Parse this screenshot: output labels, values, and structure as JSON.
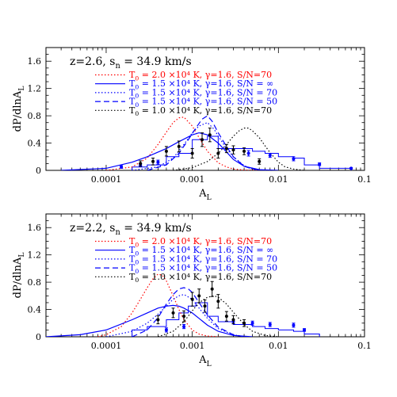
{
  "chart_data": [
    {
      "type": "line",
      "title": "z=2.6, s_n = 34.9 km/s",
      "title_main": "z=2.6, s",
      "title_sub": "n",
      "title_tail": " = 34.9 km/s",
      "xlabel": "A",
      "xlabel_sub": "L",
      "ylabel": "dP/dlnA",
      "ylabel_sub": "L",
      "xscale": "log",
      "xlim": [
        2e-05,
        0.1
      ],
      "ylim": [
        0,
        1.8
      ],
      "xticks": [
        0.0001,
        0.001,
        0.01,
        0.1
      ],
      "xtick_labels": [
        "0.0001",
        "0.001",
        "0.01",
        "0.1"
      ],
      "yticks": [
        0,
        0.4,
        0.8,
        1.2,
        1.6
      ],
      "ytick_labels": [
        "0",
        "0.4",
        "0.8",
        "1.2",
        "1.6"
      ],
      "legend_position": "top-left",
      "legend": [
        {
          "prefix": "T",
          "sub": "0",
          "label": " = 2.0 ×10⁴ K, γ=1.6, S/N=70",
          "color": "#ff0000",
          "dash": "1.5,2.5"
        },
        {
          "prefix": "T",
          "sub": "0",
          "label": " = 1.5 ×10⁴ K, γ=1.6, S/N = ∞",
          "color": "#0000ff",
          "dash": ""
        },
        {
          "prefix": "T",
          "sub": "0",
          "label": " = 1.5 ×10⁴ K, γ=1.6, S/N = 70",
          "color": "#0000ff",
          "dash": "1.5,2.5"
        },
        {
          "prefix": "T",
          "sub": "0",
          "label": " = 1.5 ×10⁴ K, γ=1.6, S/N = 50",
          "color": "#0000ff",
          "dash": "7,4"
        },
        {
          "prefix": "T",
          "sub": "0",
          "label": " = 1.0 ×10⁴ K, γ=1.6, S/N=70",
          "color": "#000000",
          "dash": "1.5,2.5"
        }
      ],
      "series": [
        {
          "name": "T0 = 2.0 ×10⁴ K, γ=1.6, S/N=70",
          "color": "#ff0000",
          "dash": "1.5,2.5",
          "x": [
            0.0001,
            0.0002,
            0.0003,
            0.0004,
            0.0005,
            0.0006,
            0.0007,
            0.0008,
            0.001,
            0.0012,
            0.0015,
            0.002,
            0.0025,
            0.003,
            0.004,
            0.006
          ],
          "y": [
            0.0,
            0.05,
            0.18,
            0.38,
            0.56,
            0.7,
            0.77,
            0.78,
            0.65,
            0.48,
            0.28,
            0.11,
            0.05,
            0.02,
            0.005,
            0.0
          ]
        },
        {
          "name": "T0 = 1.5 ×10⁴ K, γ=1.6, S/N = ∞",
          "color": "#0000ff",
          "dash": "",
          "x": [
            3e-05,
            0.0001,
            0.0002,
            0.0003,
            0.0005,
            0.0007,
            0.001,
            0.0012,
            0.0015,
            0.002,
            0.0025,
            0.003,
            0.004,
            0.006,
            0.01
          ],
          "y": [
            0.0,
            0.03,
            0.12,
            0.2,
            0.32,
            0.42,
            0.52,
            0.55,
            0.52,
            0.4,
            0.27,
            0.16,
            0.06,
            0.01,
            0.0
          ]
        },
        {
          "name": "T0 = 1.5 ×10⁴ K, γ=1.6, S/N = 70",
          "color": "#0000ff",
          "dash": "1.5,2.5",
          "x": [
            0.0002,
            0.0004,
            0.0006,
            0.0008,
            0.001,
            0.0012,
            0.0015,
            0.0018,
            0.002,
            0.0025,
            0.003,
            0.004,
            0.005,
            0.007
          ],
          "y": [
            0.0,
            0.05,
            0.18,
            0.38,
            0.55,
            0.65,
            0.7,
            0.6,
            0.5,
            0.32,
            0.2,
            0.07,
            0.02,
            0.0
          ]
        },
        {
          "name": "T0 = 1.5 ×10⁴ K, γ=1.6, S/N = 50",
          "color": "#0000ff",
          "dash": "7,4",
          "x": [
            0.0003,
            0.0005,
            0.0007,
            0.0009,
            0.0011,
            0.0013,
            0.0015,
            0.0017,
            0.002,
            0.0025,
            0.003,
            0.004,
            0.005,
            0.007
          ],
          "y": [
            0.0,
            0.08,
            0.25,
            0.45,
            0.62,
            0.75,
            0.8,
            0.72,
            0.55,
            0.35,
            0.2,
            0.06,
            0.02,
            0.0
          ]
        },
        {
          "name": "T0 = 1.0 ×10⁴ K, γ=1.6, S/N=70",
          "color": "#000000",
          "dash": "1.5,2.5",
          "x": [
            0.0006,
            0.001,
            0.0015,
            0.002,
            0.0025,
            0.003,
            0.0035,
            0.004,
            0.0045,
            0.005,
            0.006,
            0.007,
            0.008,
            0.01,
            0.012,
            0.015,
            0.02
          ],
          "y": [
            0.0,
            0.04,
            0.13,
            0.25,
            0.38,
            0.5,
            0.58,
            0.62,
            0.62,
            0.58,
            0.48,
            0.36,
            0.26,
            0.12,
            0.05,
            0.02,
            0.0
          ]
        }
      ],
      "histogram": {
        "color": "#0000ff",
        "edges": [
          0.0002,
          0.0003,
          0.0005,
          0.0007,
          0.001,
          0.0015,
          0.002,
          0.003,
          0.005,
          0.007,
          0.01,
          0.015,
          0.02,
          0.03,
          0.07
        ],
        "heights": [
          0.05,
          0.08,
          0.2,
          0.25,
          0.45,
          0.5,
          0.32,
          0.32,
          0.28,
          0.25,
          0.2,
          0.18,
          0.08,
          0.03
        ]
      },
      "points_blue": {
        "color": "#0000ff",
        "x": [
          0.00015,
          0.00025,
          0.0004,
          0.0045,
          0.008,
          0.015,
          0.03,
          0.07
        ],
        "y": [
          0.05,
          0.08,
          0.12,
          0.25,
          0.22,
          0.17,
          0.09,
          0.03
        ],
        "err": [
          0.02,
          0.02,
          0.03,
          0.04,
          0.03,
          0.03,
          0.02,
          0.01
        ]
      },
      "points_black": {
        "color": "#000000",
        "x": [
          0.00025,
          0.00035,
          0.0005,
          0.0007,
          0.001,
          0.0013,
          0.0016,
          0.002,
          0.0025,
          0.003,
          0.004,
          0.006
        ],
        "y": [
          0.1,
          0.13,
          0.28,
          0.35,
          0.25,
          0.45,
          0.52,
          0.25,
          0.32,
          0.3,
          0.28,
          0.13
        ],
        "err": [
          0.04,
          0.05,
          0.07,
          0.08,
          0.07,
          0.1,
          0.1,
          0.07,
          0.06,
          0.06,
          0.05,
          0.04
        ]
      }
    },
    {
      "type": "line",
      "title": "z=2.2, s_n = 34.9 km/s",
      "title_main": "z=2.2, s",
      "title_sub": "n",
      "title_tail": " = 34.9 km/s",
      "xlabel": "A",
      "xlabel_sub": "L",
      "ylabel": "dP/dlnA",
      "ylabel_sub": "L",
      "xscale": "log",
      "xlim": [
        2e-05,
        0.1
      ],
      "ylim": [
        0,
        1.8
      ],
      "xticks": [
        0.0001,
        0.001,
        0.01,
        0.1
      ],
      "xtick_labels": [
        "0.0001",
        "0.001",
        "0.01",
        "0.1"
      ],
      "yticks": [
        0,
        0.4,
        0.8,
        1.2,
        1.6
      ],
      "ytick_labels": [
        "0",
        "0.4",
        "0.8",
        "1.2",
        "1.6"
      ],
      "legend_position": "top-left",
      "legend": [
        {
          "prefix": "T",
          "sub": "0",
          "label": " = 2.0 ×10⁴ K, γ=1.6, S/N=70",
          "color": "#ff0000",
          "dash": "1.5,2.5"
        },
        {
          "prefix": "T",
          "sub": "0",
          "label": " = 1.5 ×10⁴ K, γ=1.6, S/N = ∞",
          "color": "#0000ff",
          "dash": ""
        },
        {
          "prefix": "T",
          "sub": "0",
          "label": " = 1.5 ×10⁴ K, γ=1.6, S/N = 70",
          "color": "#0000ff",
          "dash": "1.5,2.5"
        },
        {
          "prefix": "T",
          "sub": "0",
          "label": " = 1.5 ×10⁴ K, γ=1.6, S/N = 50",
          "color": "#0000ff",
          "dash": "7,4"
        },
        {
          "prefix": "T",
          "sub": "0",
          "label": " = 1.0 ×10⁴ K, γ=1.6, S/N=70",
          "color": "#000000",
          "dash": "1.5,2.5"
        }
      ],
      "series": [
        {
          "name": "T0 = 2.0 ×10⁴ K, γ=1.6, S/N=70",
          "color": "#ff0000",
          "dash": "1.5,2.5",
          "x": [
            8e-05,
            0.0001,
            0.00015,
            0.0002,
            0.00025,
            0.0003,
            0.00035,
            0.0004,
            0.00045,
            0.0005,
            0.0006,
            0.0007,
            0.0008,
            0.001,
            0.0012,
            0.0015,
            0.002
          ],
          "y": [
            0.0,
            0.03,
            0.15,
            0.35,
            0.55,
            0.72,
            0.85,
            0.92,
            0.9,
            0.82,
            0.6,
            0.4,
            0.25,
            0.1,
            0.04,
            0.01,
            0.0
          ]
        },
        {
          "name": "T0 = 1.5 ×10⁴ K, γ=1.6, S/N = ∞",
          "color": "#0000ff",
          "dash": "",
          "x": [
            2e-05,
            5e-05,
            0.0001,
            0.0002,
            0.0003,
            0.0004,
            0.0005,
            0.0006,
            0.0007,
            0.0008,
            0.001,
            0.0012,
            0.0015,
            0.002,
            0.003,
            0.005
          ],
          "y": [
            0.0,
            0.03,
            0.1,
            0.25,
            0.35,
            0.42,
            0.45,
            0.46,
            0.45,
            0.42,
            0.35,
            0.27,
            0.17,
            0.08,
            0.02,
            0.0
          ]
        },
        {
          "name": "T0 = 1.5 ×10⁴ K, γ=1.6, S/N = 70",
          "color": "#0000ff",
          "dash": "1.5,2.5",
          "x": [
            0.0001,
            0.0002,
            0.0003,
            0.0004,
            0.0005,
            0.0006,
            0.0007,
            0.0008,
            0.001,
            0.0012,
            0.0015,
            0.002,
            0.003,
            0.004
          ],
          "y": [
            0.0,
            0.08,
            0.2,
            0.33,
            0.45,
            0.55,
            0.6,
            0.62,
            0.55,
            0.42,
            0.27,
            0.12,
            0.03,
            0.0
          ]
        },
        {
          "name": "T0 = 1.5 ×10⁴ K, γ=1.6, S/N = 50",
          "color": "#0000ff",
          "dash": "7,4",
          "x": [
            0.0002,
            0.0003,
            0.0004,
            0.0005,
            0.0006,
            0.0007,
            0.0008,
            0.0009,
            0.001,
            0.0012,
            0.0015,
            0.002,
            0.003,
            0.004
          ],
          "y": [
            0.0,
            0.1,
            0.28,
            0.48,
            0.62,
            0.7,
            0.72,
            0.7,
            0.65,
            0.5,
            0.32,
            0.14,
            0.03,
            0.0
          ]
        },
        {
          "name": "T0 = 1.0 ×10⁴ K, γ=1.6, S/N=70",
          "color": "#000000",
          "dash": "1.5,2.5",
          "x": [
            0.0004,
            0.0006,
            0.0008,
            0.001,
            0.0012,
            0.0015,
            0.0018,
            0.002,
            0.0025,
            0.003,
            0.004,
            0.005,
            0.007,
            0.01
          ],
          "y": [
            0.0,
            0.08,
            0.22,
            0.38,
            0.5,
            0.58,
            0.6,
            0.58,
            0.48,
            0.36,
            0.18,
            0.08,
            0.02,
            0.0
          ]
        }
      ],
      "histogram": {
        "color": "#0000ff",
        "edges": [
          0.0002,
          0.0003,
          0.0005,
          0.0007,
          0.0009,
          0.0011,
          0.0015,
          0.002,
          0.003,
          0.005,
          0.007,
          0.01,
          0.015,
          0.02,
          0.03
        ],
        "heights": [
          0.1,
          0.15,
          0.25,
          0.35,
          0.45,
          0.5,
          0.3,
          0.22,
          0.18,
          0.15,
          0.12,
          0.1,
          0.08,
          0.04
        ]
      },
      "points_blue": {
        "color": "#0000ff",
        "x": [
          0.0005,
          0.0008,
          0.003,
          0.005,
          0.008,
          0.015,
          0.02
        ],
        "y": [
          0.1,
          0.15,
          0.22,
          0.2,
          0.18,
          0.17,
          0.1
        ],
        "err": [
          0.03,
          0.03,
          0.03,
          0.03,
          0.03,
          0.03,
          0.02
        ]
      },
      "points_black": {
        "color": "#000000",
        "x": [
          0.0004,
          0.0006,
          0.0008,
          0.001,
          0.0012,
          0.0014,
          0.0017,
          0.002,
          0.0025,
          0.003,
          0.004
        ],
        "y": [
          0.25,
          0.35,
          0.3,
          0.55,
          0.6,
          0.45,
          0.7,
          0.52,
          0.3,
          0.25,
          0.2
        ],
        "err": [
          0.06,
          0.07,
          0.08,
          0.1,
          0.1,
          0.09,
          0.11,
          0.1,
          0.07,
          0.06,
          0.05
        ]
      }
    }
  ]
}
